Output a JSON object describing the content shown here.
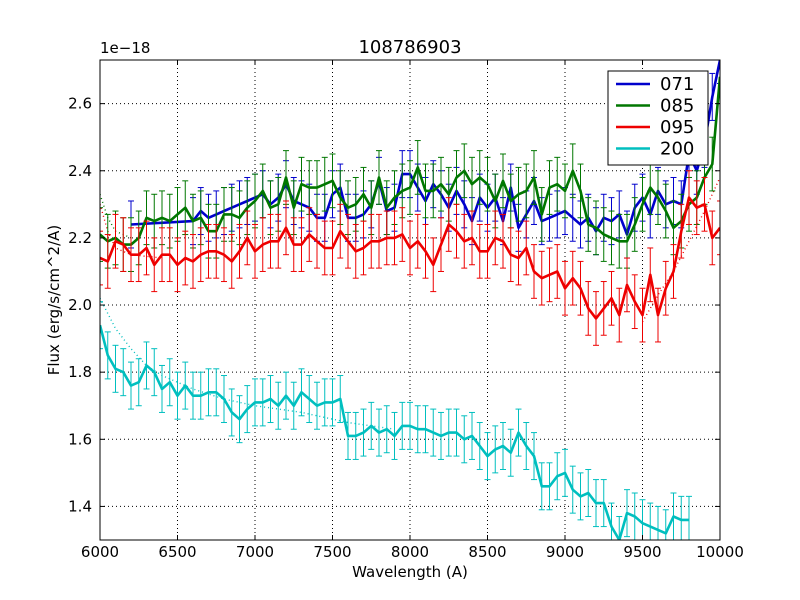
{
  "chart_data": {
    "type": "line",
    "title": "108786903",
    "xlabel": "Wavelength (A)",
    "ylabel": "Flux (erg/s/cm^2/A)",
    "y_multiplier_label": "1e−18",
    "xlim": [
      6000,
      10000
    ],
    "ylim": [
      1.3,
      2.73
    ],
    "xticks": [
      6000,
      6500,
      7000,
      7500,
      8000,
      8500,
      9000,
      9500,
      10000
    ],
    "xtick_labels": [
      "6000",
      "6500",
      "7000",
      "7500",
      "8000",
      "8500",
      "9000",
      "9500",
      "10000"
    ],
    "yticks": [
      1.4,
      1.6,
      1.8,
      2.0,
      2.2,
      2.4,
      2.6
    ],
    "ytick_labels": [
      "1.4",
      "1.6",
      "1.8",
      "2.0",
      "2.2",
      "2.4",
      "2.6"
    ],
    "grid": true,
    "legend_position": "top-right",
    "series": [
      {
        "name": "071",
        "color": "#0000cc",
        "x": [
          6200,
          6600,
          6650,
          6700,
          6750,
          6800,
          6850,
          6900,
          6950,
          7000,
          7050,
          7100,
          7150,
          7200,
          7250,
          7300,
          7350,
          7400,
          7450,
          7500,
          7550,
          7600,
          7650,
          7700,
          7750,
          7800,
          7850,
          7900,
          7950,
          8000,
          8050,
          8100,
          8150,
          8200,
          8250,
          8300,
          8350,
          8400,
          8450,
          8500,
          8550,
          8600,
          8650,
          8700,
          8750,
          8800,
          8850,
          8900,
          8950,
          9000,
          9050,
          9100,
          9150,
          9200,
          9250,
          9300,
          9350,
          9400,
          9450,
          9500,
          9550,
          9600,
          9650,
          9700,
          9750,
          9800,
          9850,
          9900,
          9950,
          10000
        ],
        "y": [
          2.24,
          2.25,
          2.28,
          2.26,
          2.27,
          2.28,
          2.29,
          2.3,
          2.31,
          2.32,
          2.33,
          2.3,
          2.32,
          2.36,
          2.31,
          2.3,
          2.29,
          2.26,
          2.26,
          2.33,
          2.35,
          2.26,
          2.26,
          2.27,
          2.3,
          2.37,
          2.28,
          2.29,
          2.39,
          2.39,
          2.35,
          2.31,
          2.36,
          2.33,
          2.29,
          2.34,
          2.3,
          2.25,
          2.32,
          2.29,
          2.32,
          2.25,
          2.35,
          2.23,
          2.27,
          2.31,
          2.25,
          2.26,
          2.27,
          2.28,
          2.26,
          2.24,
          2.26,
          2.22,
          2.26,
          2.25,
          2.27,
          2.21,
          2.29,
          2.32,
          2.27,
          2.34,
          2.3,
          2.31,
          2.3,
          2.45,
          2.4,
          2.48,
          2.62,
          2.73
        ],
        "err": [
          0.07,
          0.07,
          0.07,
          0.07,
          0.07,
          0.07,
          0.07,
          0.07,
          0.07,
          0.07,
          0.07,
          0.07,
          0.07,
          0.07,
          0.07,
          0.07,
          0.07,
          0.07,
          0.07,
          0.07,
          0.07,
          0.07,
          0.07,
          0.07,
          0.07,
          0.07,
          0.07,
          0.07,
          0.07,
          0.07,
          0.07,
          0.07,
          0.07,
          0.07,
          0.07,
          0.07,
          0.07,
          0.07,
          0.07,
          0.07,
          0.07,
          0.07,
          0.07,
          0.07,
          0.07,
          0.07,
          0.07,
          0.07,
          0.07,
          0.07,
          0.07,
          0.07,
          0.07,
          0.07,
          0.07,
          0.07,
          0.07,
          0.07,
          0.07,
          0.07,
          0.07,
          0.07,
          0.07,
          0.07,
          0.07,
          0.07,
          0.07,
          0.07,
          0.07,
          0.07
        ]
      },
      {
        "name": "085",
        "color": "#007700",
        "x": [
          6000,
          6050,
          6100,
          6150,
          6200,
          6250,
          6300,
          6350,
          6400,
          6450,
          6500,
          6550,
          6600,
          6650,
          6700,
          6750,
          6800,
          6850,
          6900,
          6950,
          7000,
          7050,
          7100,
          7150,
          7200,
          7250,
          7300,
          7350,
          7400,
          7450,
          7500,
          7550,
          7600,
          7650,
          7700,
          7750,
          7800,
          7850,
          7900,
          7950,
          8000,
          8050,
          8100,
          8150,
          8200,
          8250,
          8300,
          8350,
          8400,
          8450,
          8500,
          8550,
          8600,
          8650,
          8700,
          8750,
          8800,
          8850,
          8900,
          8950,
          9000,
          9050,
          9100,
          9150,
          9200,
          9250,
          9300,
          9350,
          9400,
          9450,
          9500,
          9550,
          9600,
          9650,
          9700,
          9750,
          9800,
          9850,
          9900,
          9950,
          10000
        ],
        "y": [
          2.21,
          2.19,
          2.2,
          2.18,
          2.18,
          2.2,
          2.26,
          2.25,
          2.26,
          2.25,
          2.27,
          2.29,
          2.25,
          2.26,
          2.22,
          2.22,
          2.27,
          2.27,
          2.26,
          2.29,
          2.31,
          2.34,
          2.29,
          2.3,
          2.38,
          2.29,
          2.36,
          2.35,
          2.35,
          2.36,
          2.37,
          2.32,
          2.29,
          2.3,
          2.33,
          2.29,
          2.38,
          2.29,
          2.32,
          2.34,
          2.35,
          2.41,
          2.34,
          2.34,
          2.36,
          2.33,
          2.38,
          2.4,
          2.36,
          2.38,
          2.36,
          2.31,
          2.37,
          2.31,
          2.33,
          2.34,
          2.38,
          2.27,
          2.35,
          2.36,
          2.34,
          2.4,
          2.34,
          2.24,
          2.23,
          2.21,
          2.2,
          2.19,
          2.19,
          2.24,
          2.3,
          2.35,
          2.32,
          2.28,
          2.23,
          2.25,
          2.3,
          2.32,
          2.38,
          2.42,
          2.68
        ],
        "err": [
          0.08,
          0.08,
          0.08,
          0.08,
          0.08,
          0.08,
          0.08,
          0.08,
          0.08,
          0.08,
          0.08,
          0.08,
          0.08,
          0.08,
          0.08,
          0.08,
          0.08,
          0.08,
          0.08,
          0.08,
          0.08,
          0.08,
          0.08,
          0.08,
          0.08,
          0.08,
          0.08,
          0.08,
          0.08,
          0.08,
          0.08,
          0.08,
          0.08,
          0.08,
          0.08,
          0.08,
          0.08,
          0.08,
          0.08,
          0.08,
          0.08,
          0.08,
          0.08,
          0.08,
          0.08,
          0.08,
          0.08,
          0.08,
          0.08,
          0.08,
          0.08,
          0.08,
          0.08,
          0.08,
          0.08,
          0.08,
          0.08,
          0.08,
          0.08,
          0.08,
          0.08,
          0.08,
          0.08,
          0.08,
          0.08,
          0.08,
          0.08,
          0.08,
          0.08,
          0.08,
          0.08,
          0.08,
          0.08,
          0.08,
          0.08,
          0.08,
          0.08,
          0.08,
          0.08,
          0.08,
          0.08
        ]
      },
      {
        "name": "095",
        "color": "#ee0000",
        "x": [
          6000,
          6050,
          6100,
          6150,
          6200,
          6250,
          6300,
          6350,
          6400,
          6450,
          6500,
          6550,
          6600,
          6650,
          6700,
          6750,
          6800,
          6850,
          6900,
          6950,
          7000,
          7050,
          7100,
          7150,
          7200,
          7250,
          7300,
          7350,
          7400,
          7450,
          7500,
          7550,
          7600,
          7650,
          7700,
          7750,
          7800,
          7850,
          7900,
          7950,
          8000,
          8050,
          8100,
          8150,
          8200,
          8250,
          8300,
          8350,
          8400,
          8450,
          8500,
          8550,
          8600,
          8650,
          8700,
          8750,
          8800,
          8850,
          8900,
          8950,
          9000,
          9050,
          9100,
          9150,
          9200,
          9250,
          9300,
          9350,
          9400,
          9450,
          9500,
          9550,
          9600,
          9650,
          9700,
          9750,
          9800,
          9850,
          9900,
          9950,
          10000
        ],
        "y": [
          2.14,
          2.13,
          2.19,
          2.18,
          2.15,
          2.15,
          2.17,
          2.12,
          2.15,
          2.15,
          2.12,
          2.14,
          2.13,
          2.15,
          2.16,
          2.16,
          2.15,
          2.13,
          2.16,
          2.2,
          2.16,
          2.18,
          2.19,
          2.19,
          2.23,
          2.18,
          2.18,
          2.21,
          2.19,
          2.17,
          2.17,
          2.22,
          2.19,
          2.16,
          2.17,
          2.19,
          2.19,
          2.2,
          2.2,
          2.21,
          2.17,
          2.19,
          2.16,
          2.12,
          2.18,
          2.24,
          2.22,
          2.19,
          2.2,
          2.16,
          2.16,
          2.2,
          2.19,
          2.15,
          2.14,
          2.17,
          2.1,
          2.08,
          2.09,
          2.1,
          2.05,
          2.08,
          2.05,
          1.99,
          1.96,
          1.99,
          2.02,
          1.97,
          2.06,
          2.01,
          1.97,
          2.09,
          1.97,
          2.05,
          2.1,
          2.22,
          2.32,
          2.29,
          2.3,
          2.2,
          2.23
        ],
        "err": [
          0.08,
          0.08,
          0.08,
          0.08,
          0.08,
          0.08,
          0.08,
          0.08,
          0.08,
          0.08,
          0.08,
          0.08,
          0.08,
          0.08,
          0.08,
          0.08,
          0.08,
          0.08,
          0.08,
          0.08,
          0.08,
          0.08,
          0.08,
          0.08,
          0.08,
          0.08,
          0.08,
          0.08,
          0.08,
          0.08,
          0.08,
          0.08,
          0.08,
          0.08,
          0.08,
          0.08,
          0.08,
          0.08,
          0.08,
          0.08,
          0.08,
          0.08,
          0.08,
          0.08,
          0.08,
          0.08,
          0.08,
          0.08,
          0.08,
          0.08,
          0.08,
          0.08,
          0.08,
          0.08,
          0.08,
          0.08,
          0.08,
          0.08,
          0.08,
          0.08,
          0.08,
          0.08,
          0.08,
          0.08,
          0.08,
          0.08,
          0.08,
          0.08,
          0.08,
          0.08,
          0.08,
          0.08,
          0.08,
          0.08,
          0.08,
          0.08,
          0.08,
          0.08,
          0.08,
          0.08,
          0.08
        ]
      },
      {
        "name": "200",
        "color": "#00bfbf",
        "x": [
          6000,
          6050,
          6100,
          6150,
          6200,
          6250,
          6300,
          6350,
          6400,
          6450,
          6500,
          6550,
          6600,
          6650,
          6700,
          6750,
          6800,
          6850,
          6900,
          6950,
          7000,
          7050,
          7100,
          7150,
          7200,
          7250,
          7300,
          7350,
          7400,
          7450,
          7500,
          7550,
          7600,
          7650,
          7700,
          7750,
          7800,
          7850,
          7900,
          7950,
          8000,
          8050,
          8100,
          8150,
          8200,
          8250,
          8300,
          8350,
          8400,
          8450,
          8500,
          8550,
          8600,
          8650,
          8700,
          8750,
          8800,
          8850,
          8900,
          8950,
          9000,
          9050,
          9100,
          9150,
          9200,
          9250,
          9300,
          9350,
          9400,
          9450,
          9500,
          9550,
          9600,
          9650,
          9700,
          9750,
          9800
        ],
        "y": [
          1.94,
          1.85,
          1.81,
          1.8,
          1.76,
          1.77,
          1.82,
          1.8,
          1.75,
          1.77,
          1.73,
          1.76,
          1.73,
          1.73,
          1.74,
          1.74,
          1.72,
          1.68,
          1.66,
          1.69,
          1.71,
          1.71,
          1.72,
          1.7,
          1.73,
          1.7,
          1.74,
          1.72,
          1.7,
          1.71,
          1.71,
          1.72,
          1.61,
          1.61,
          1.62,
          1.64,
          1.62,
          1.63,
          1.61,
          1.64,
          1.64,
          1.63,
          1.63,
          1.62,
          1.61,
          1.62,
          1.62,
          1.6,
          1.61,
          1.58,
          1.55,
          1.57,
          1.58,
          1.56,
          1.62,
          1.58,
          1.55,
          1.46,
          1.46,
          1.49,
          1.5,
          1.45,
          1.43,
          1.44,
          1.41,
          1.41,
          1.34,
          1.3,
          1.38,
          1.37,
          1.35,
          1.34,
          1.33,
          1.32,
          1.37,
          1.36,
          1.36
        ],
        "err": [
          0.07,
          0.07,
          0.07,
          0.07,
          0.07,
          0.07,
          0.07,
          0.07,
          0.07,
          0.07,
          0.07,
          0.07,
          0.07,
          0.07,
          0.07,
          0.07,
          0.07,
          0.07,
          0.07,
          0.07,
          0.07,
          0.07,
          0.07,
          0.07,
          0.07,
          0.07,
          0.07,
          0.07,
          0.07,
          0.07,
          0.07,
          0.07,
          0.07,
          0.07,
          0.07,
          0.07,
          0.07,
          0.07,
          0.07,
          0.07,
          0.07,
          0.07,
          0.07,
          0.07,
          0.07,
          0.07,
          0.07,
          0.07,
          0.07,
          0.07,
          0.07,
          0.07,
          0.07,
          0.07,
          0.07,
          0.07,
          0.07,
          0.07,
          0.07,
          0.07,
          0.07,
          0.07,
          0.07,
          0.07,
          0.07,
          0.07,
          0.07,
          0.07,
          0.07,
          0.07,
          0.07,
          0.07,
          0.07,
          0.07,
          0.07,
          0.07,
          0.07
        ]
      }
    ],
    "model_curves": [
      {
        "series": "085",
        "color": "#007700",
        "style": "dotted",
        "x": [
          6000,
          6050,
          6100,
          6200
        ],
        "y": [
          2.33,
          2.26,
          2.22,
          2.2
        ]
      },
      {
        "series": "095",
        "color": "#ee0000",
        "style": "dotted",
        "x": [
          6000,
          6050,
          6100,
          6200,
          6400
        ],
        "y": [
          2.3,
          2.22,
          2.17,
          2.15,
          2.14
        ]
      },
      {
        "series": "095",
        "color": "#ee0000",
        "style": "dotted",
        "x": [
          9500,
          9600,
          9700,
          9800,
          9900,
          10000
        ],
        "y": [
          1.95,
          2.03,
          2.1,
          2.19,
          2.28,
          2.38
        ]
      },
      {
        "series": "200",
        "color": "#00bfbf",
        "style": "dotted",
        "x": [
          6000,
          6100,
          6200,
          6300,
          6400,
          6600,
          6800,
          7000,
          7300,
          7600,
          7900
        ],
        "y": [
          2.02,
          1.93,
          1.87,
          1.82,
          1.79,
          1.75,
          1.72,
          1.7,
          1.68,
          1.65,
          1.63
        ]
      }
    ]
  }
}
